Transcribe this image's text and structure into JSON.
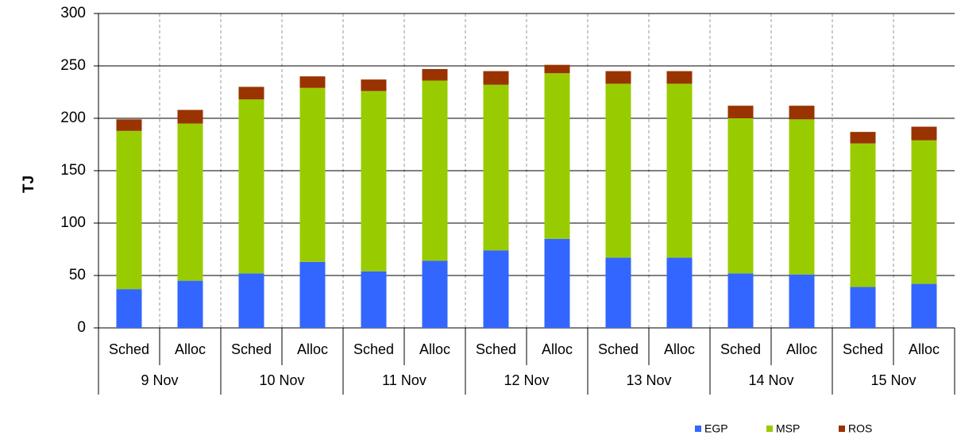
{
  "chart_data": {
    "type": "stacked-bar",
    "y_label": "TJ",
    "categories": [
      "Sched",
      "Alloc",
      "Sched",
      "Alloc",
      "Sched",
      "Alloc",
      "Sched",
      "Alloc",
      "Sched",
      "Alloc",
      "Sched",
      "Alloc",
      "Sched",
      "Alloc"
    ],
    "groups": [
      "9 Nov",
      "10 Nov",
      "11 Nov",
      "12 Nov",
      "13 Nov",
      "14 Nov",
      "15 Nov"
    ],
    "series": [
      {
        "name": "EGP",
        "color": "#3366ff",
        "values": [
          37,
          45,
          52,
          63,
          54,
          64,
          74,
          85,
          67,
          67,
          52,
          51,
          39,
          42
        ]
      },
      {
        "name": "MSP",
        "color": "#99cc00",
        "values": [
          151,
          150,
          166,
          166,
          172,
          172,
          158,
          158,
          166,
          166,
          148,
          148,
          137,
          137
        ]
      },
      {
        "name": "ROS",
        "color": "#993300",
        "values": [
          11,
          13,
          12,
          11,
          11,
          11,
          13,
          8,
          12,
          12,
          12,
          13,
          11,
          13
        ]
      }
    ],
    "ylim": [
      0,
      300
    ],
    "yticks": [
      0,
      50,
      100,
      150,
      200,
      250,
      300
    ],
    "grid": true,
    "legend": "bottom-right"
  }
}
